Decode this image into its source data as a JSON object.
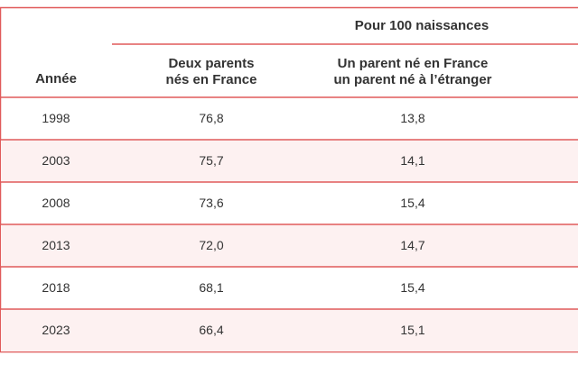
{
  "table": {
    "group_header": "Pour 100 naissances",
    "columns": [
      [
        "Année"
      ],
      [
        "Deux parents",
        "nés en France"
      ],
      [
        "Un parent né en France",
        "un parent né à l’étranger"
      ]
    ],
    "rows": [
      [
        "1998",
        "76,8",
        "13,8"
      ],
      [
        "2003",
        "75,7",
        "14,1"
      ],
      [
        "2008",
        "73,6",
        "15,4"
      ],
      [
        "2013",
        "72,0",
        "14,7"
      ],
      [
        "2018",
        "68,1",
        "15,4"
      ],
      [
        "2023",
        "66,4",
        "15,1"
      ]
    ]
  }
}
